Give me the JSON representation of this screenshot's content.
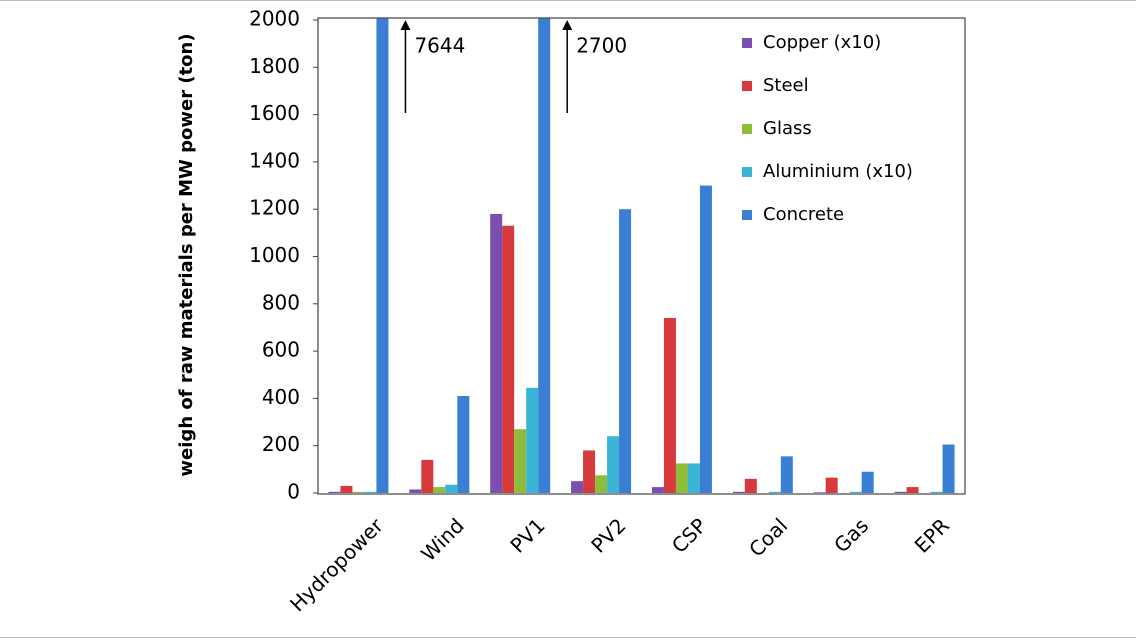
{
  "chart_data": {
    "type": "bar",
    "y_label": "weigh of raw materials per MW power (ton)",
    "categories": [
      "Hydropower",
      "Wind",
      "PV1",
      "PV2",
      "CSP",
      "Coal",
      "Gas",
      "EPR"
    ],
    "series": [
      {
        "name": "Copper (x10)",
        "color": "#7b4fb0",
        "values": [
          5,
          15,
          1180,
          50,
          25,
          5,
          3,
          5
        ]
      },
      {
        "name": "Steel",
        "color": "#d63a3c",
        "values": [
          30,
          140,
          1130,
          180,
          740,
          60,
          65,
          25
        ]
      },
      {
        "name": "Glass",
        "color": "#8dbd3a",
        "values": [
          5,
          25,
          270,
          75,
          125,
          0,
          0,
          0
        ]
      },
      {
        "name": "Aluminium (x10)",
        "color": "#3ab5d6",
        "values": [
          5,
          35,
          445,
          240,
          125,
          5,
          5,
          5
        ]
      },
      {
        "name": "Concrete",
        "color": "#3b7fd4",
        "values": [
          7644,
          410,
          2700,
          1200,
          1300,
          155,
          90,
          205
        ],
        "value_labels": [
          "7644",
          null,
          "2700",
          null,
          null,
          null,
          null,
          null
        ]
      }
    ],
    "ylim": [
      0,
      2000
    ],
    "yticks": [
      0,
      200,
      400,
      600,
      800,
      1000,
      1200,
      1400,
      1600,
      1800,
      2000
    ],
    "legend": "upper right",
    "grid": false
  }
}
